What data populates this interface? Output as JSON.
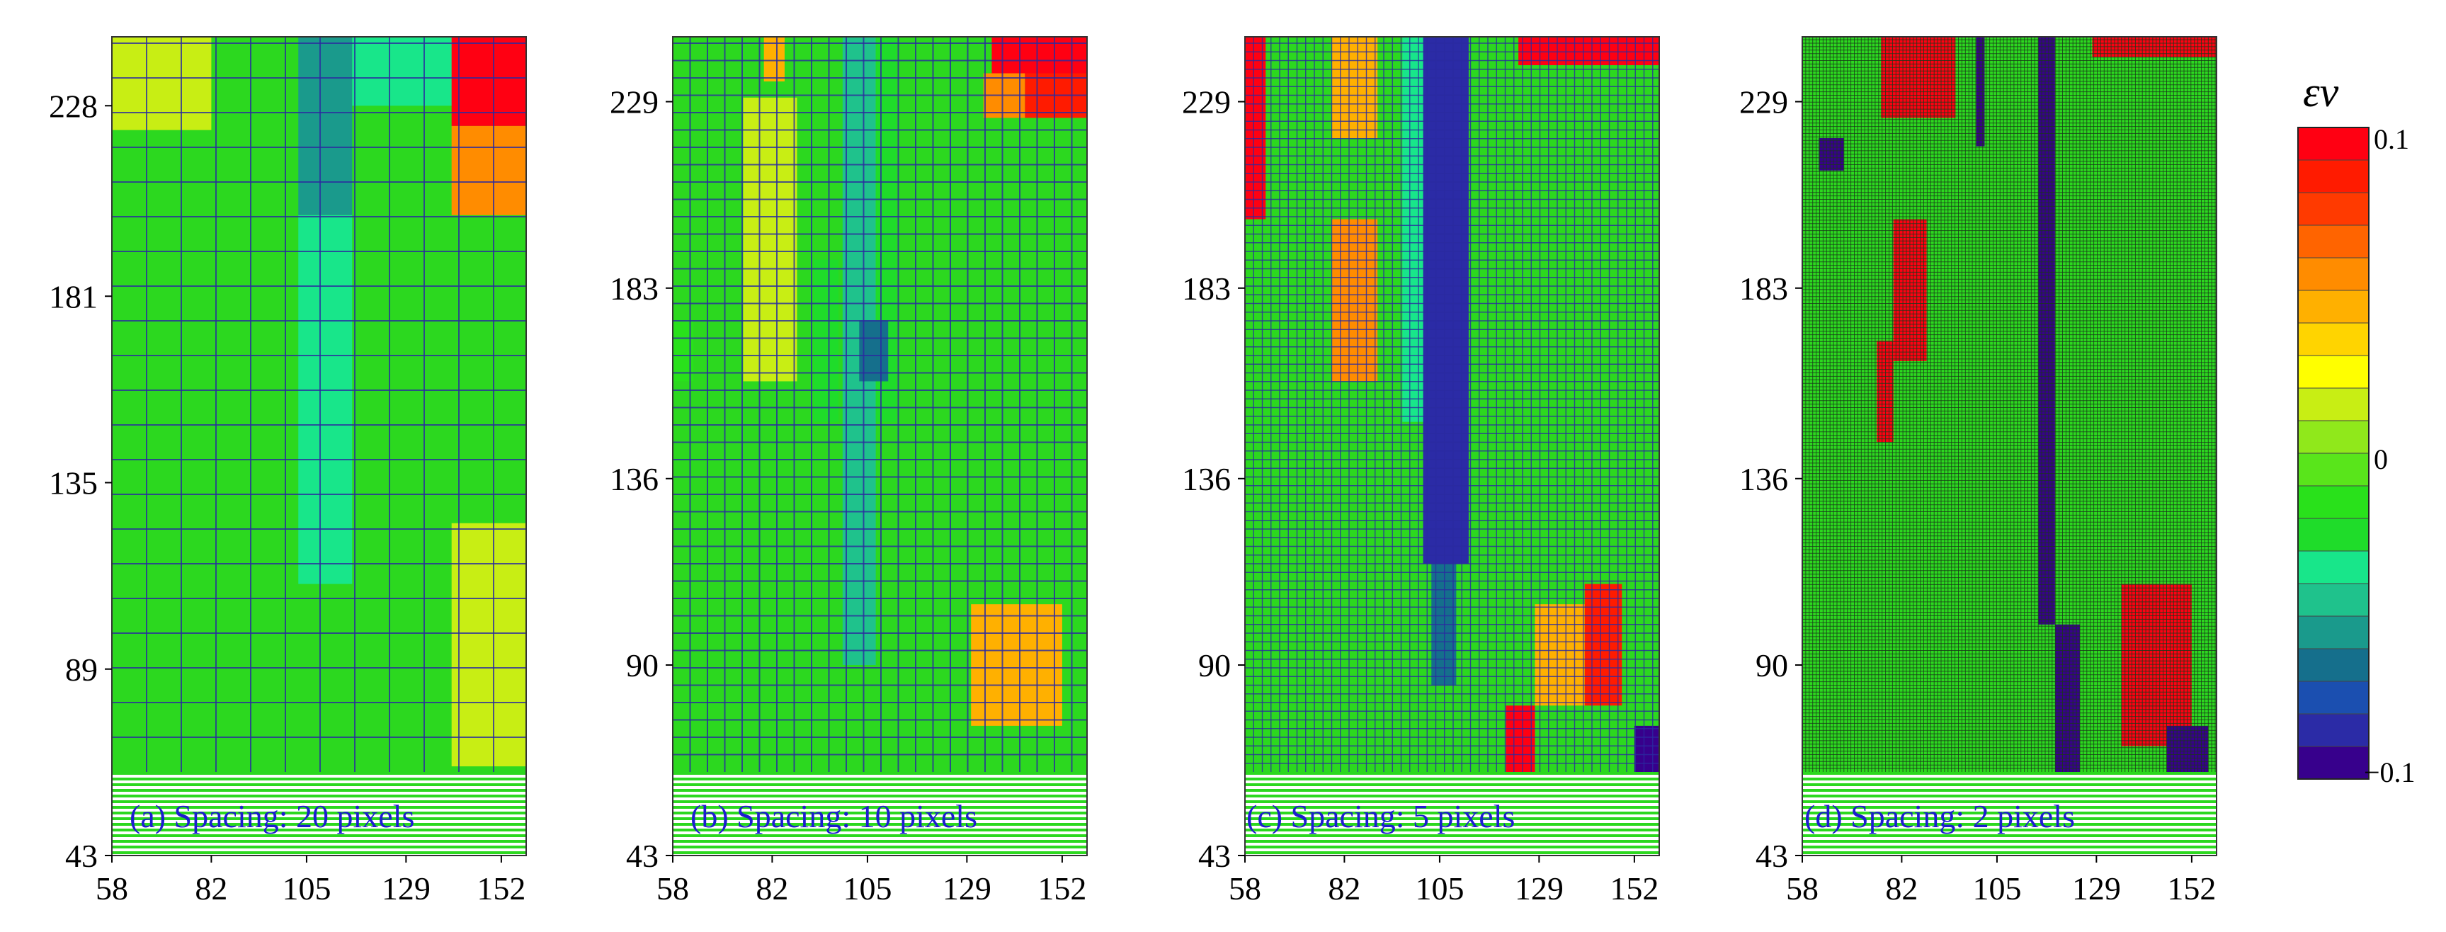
{
  "chart_data": [
    {
      "type": "heatmap",
      "caption": "(a) Spacing: 20 pixels",
      "spacing_px": 20,
      "x_ticks": [
        "58",
        "82",
        "105",
        "129",
        "152"
      ],
      "y_ticks": [
        "43",
        "89",
        "135",
        "181",
        "228"
      ],
      "xlim": [
        58,
        158
      ],
      "ylim": [
        43,
        245
      ],
      "grid": true,
      "features": [
        {
          "x": [
            103,
            116
          ],
          "y": [
            201,
            245
          ],
          "value": -0.06
        },
        {
          "x": [
            116,
            141
          ],
          "y": [
            228,
            245
          ],
          "value": -0.035
        },
        {
          "x": [
            140,
            158
          ],
          "y": [
            223,
            245
          ],
          "value": 0.1
        },
        {
          "x": [
            140,
            158
          ],
          "y": [
            201,
            223
          ],
          "value": 0.06
        },
        {
          "x": [
            58,
            82
          ],
          "y": [
            222,
            245
          ],
          "value": 0.015
        },
        {
          "x": [
            140,
            158
          ],
          "y": [
            65,
            125
          ],
          "value": 0.015
        },
        {
          "x": [
            103,
            116
          ],
          "y": [
            110,
            201
          ],
          "value": -0.035
        }
      ]
    },
    {
      "type": "heatmap",
      "caption": "(b) Spacing: 10 pixels",
      "spacing_px": 10,
      "x_ticks": [
        "58",
        "82",
        "105",
        "129",
        "152"
      ],
      "y_ticks": [
        "43",
        "90",
        "136",
        "183",
        "229"
      ],
      "xlim": [
        58,
        158
      ],
      "ylim": [
        43,
        245
      ],
      "grid": true,
      "features": [
        {
          "x": [
            135,
            158
          ],
          "y": [
            235,
            245
          ],
          "value": 0.1
        },
        {
          "x": [
            143,
            158
          ],
          "y": [
            225,
            236
          ],
          "value": 0.085
        },
        {
          "x": [
            133,
            143
          ],
          "y": [
            225,
            236
          ],
          "value": 0.06
        },
        {
          "x": [
            80,
            85
          ],
          "y": [
            234,
            245
          ],
          "value": 0.04
        },
        {
          "x": [
            99,
            107
          ],
          "y": [
            90,
            245
          ],
          "value": -0.045
        },
        {
          "x": [
            107,
            112
          ],
          "y": [
            150,
            245
          ],
          "value": -0.03
        },
        {
          "x": [
            92,
            98
          ],
          "y": [
            150,
            190
          ],
          "value": -0.02
        },
        {
          "x": [
            58,
            63
          ],
          "y": [
            160,
            175
          ],
          "value": -0.015
        },
        {
          "x": [
            75,
            88
          ],
          "y": [
            160,
            230
          ],
          "value": 0.015
        },
        {
          "x": [
            130,
            152
          ],
          "y": [
            75,
            105
          ],
          "value": 0.04
        },
        {
          "x": [
            103,
            110
          ],
          "y": [
            160,
            175
          ],
          "value": -0.065
        }
      ]
    },
    {
      "type": "heatmap",
      "caption": "(c) Spacing: 5 pixels",
      "spacing_px": 5,
      "x_ticks": [
        "58",
        "82",
        "105",
        "129",
        "152"
      ],
      "y_ticks": [
        "43",
        "90",
        "136",
        "183",
        "229"
      ],
      "xlim": [
        58,
        158
      ],
      "ylim": [
        43,
        245
      ],
      "grid": true,
      "features": [
        {
          "x": [
            101,
            112
          ],
          "y": [
            115,
            245
          ],
          "value": -0.09
        },
        {
          "x": [
            103,
            109
          ],
          "y": [
            85,
            115
          ],
          "value": -0.07
        },
        {
          "x": [
            96,
            101
          ],
          "y": [
            150,
            245
          ],
          "value": -0.04
        },
        {
          "x": [
            79,
            90
          ],
          "y": [
            160,
            200
          ],
          "value": 0.06
        },
        {
          "x": [
            79,
            90
          ],
          "y": [
            220,
            245
          ],
          "value": 0.04
        },
        {
          "x": [
            58,
            63
          ],
          "y": [
            200,
            245
          ],
          "value": 0.1
        },
        {
          "x": [
            124,
            158
          ],
          "y": [
            238,
            245
          ],
          "value": 0.1
        },
        {
          "x": [
            128,
            140
          ],
          "y": [
            80,
            105
          ],
          "value": 0.04
        },
        {
          "x": [
            140,
            149
          ],
          "y": [
            80,
            110
          ],
          "value": 0.08
        },
        {
          "x": [
            121,
            128
          ],
          "y": [
            60,
            80
          ],
          "value": 0.1
        },
        {
          "x": [
            152,
            158
          ],
          "y": [
            55,
            75
          ],
          "value": -0.1
        }
      ]
    },
    {
      "type": "heatmap",
      "caption": "(d) Spacing: 2 pixels",
      "spacing_px": 2,
      "x_ticks": [
        "58",
        "82",
        "105",
        "129",
        "152"
      ],
      "y_ticks": [
        "43",
        "90",
        "136",
        "183",
        "229"
      ],
      "xlim": [
        58,
        158
      ],
      "ylim": [
        43,
        245
      ],
      "grid": true,
      "features": [
        {
          "x": [
            100,
            102
          ],
          "y": [
            218,
            245
          ],
          "value": -0.1
        },
        {
          "x": [
            115,
            119
          ],
          "y": [
            100,
            245
          ],
          "value": -0.1
        },
        {
          "x": [
            119,
            125
          ],
          "y": [
            60,
            100
          ],
          "value": -0.1
        },
        {
          "x": [
            77,
            95
          ],
          "y": [
            225,
            245
          ],
          "value": 0.1
        },
        {
          "x": [
            80,
            88
          ],
          "y": [
            165,
            200
          ],
          "value": 0.1
        },
        {
          "x": [
            76,
            80
          ],
          "y": [
            145,
            170
          ],
          "value": 0.1
        },
        {
          "x": [
            62,
            68
          ],
          "y": [
            212,
            220
          ],
          "value": -0.1
        },
        {
          "x": [
            128,
            158
          ],
          "y": [
            240,
            245
          ],
          "value": 0.1
        },
        {
          "x": [
            135,
            152
          ],
          "y": [
            70,
            110
          ],
          "value": 0.1
        },
        {
          "x": [
            146,
            156
          ],
          "y": [
            60,
            75
          ],
          "value": -0.1
        }
      ]
    }
  ],
  "colorbar": {
    "title": "εv",
    "label_top": "0.1",
    "label_mid": "0",
    "label_bottom": "−0.1",
    "vmin": -0.1,
    "vmax": 0.1,
    "colors": [
      "#37008c",
      "#2b2ba6",
      "#1b4fb0",
      "#156f8c",
      "#1a9a8c",
      "#1fc28c",
      "#18e68a",
      "#1fdc2a",
      "#29e11b",
      "#59e51b",
      "#90e81b",
      "#c8ee14",
      "#ffff00",
      "#ffd400",
      "#ffb000",
      "#ff8c00",
      "#ff6400",
      "#ff3a00",
      "#ff1b00",
      "#ff0012"
    ],
    "base_color": "#2cd81f"
  }
}
